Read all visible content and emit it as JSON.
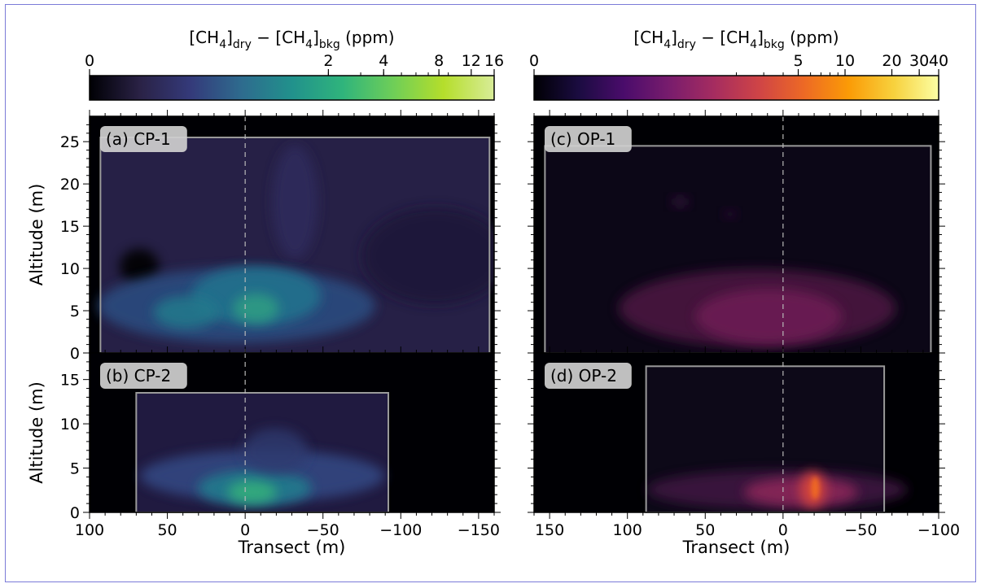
{
  "chart_data": {
    "type": "heatmap",
    "colorbars": [
      {
        "id": "cp",
        "label_prefix": "[CH",
        "label_sub1": "4",
        "label_mid1": "]",
        "label_sub2": "dry",
        "label_minus": " − [CH",
        "label_sub3": "4",
        "label_mid2": "]",
        "label_sub4": "bkg",
        "label_suffix": " (ppm)",
        "scale": "symlog",
        "range": [
          0,
          16
        ],
        "ticks": [
          "0",
          "2",
          "4",
          "8",
          "12",
          "16"
        ],
        "tick_values": [
          0,
          2,
          4,
          8,
          12,
          16
        ],
        "colormap": [
          "#000004",
          "#2a2246",
          "#343a7a",
          "#2e6b8e",
          "#21918c",
          "#2fb47c",
          "#6ece58",
          "#b5de2b",
          "#d8ec98"
        ]
      },
      {
        "id": "op",
        "label_prefix": "[CH",
        "label_sub1": "4",
        "label_mid1": "]",
        "label_sub2": "dry",
        "label_minus": " − [CH",
        "label_sub3": "4",
        "label_mid2": "]",
        "label_sub4": "bkg",
        "label_suffix": " (ppm)",
        "scale": "symlog",
        "range": [
          0,
          40
        ],
        "ticks": [
          "0",
          "5",
          "10",
          "20",
          "30",
          "40"
        ],
        "tick_values": [
          0,
          5,
          10,
          20,
          30,
          40
        ],
        "colormap": [
          "#000004",
          "#1b0c41",
          "#4a0c6b",
          "#781c6d",
          "#a52c60",
          "#cf4446",
          "#ed6925",
          "#fb9b06",
          "#f7d13d",
          "#fcffa4"
        ]
      }
    ],
    "panels": [
      {
        "id": "a",
        "label": "(a) CP-1",
        "xlim": [
          100,
          -160
        ],
        "ylim": [
          0,
          28
        ],
        "yticks": [
          "0",
          "5",
          "10",
          "15",
          "20",
          "25"
        ],
        "ytick_values": [
          0,
          5,
          10,
          15,
          20,
          25
        ],
        "box": {
          "x": [
            93,
            -157
          ],
          "y": [
            0,
            25.5
          ]
        },
        "colormap": "cp"
      },
      {
        "id": "b",
        "label": "(b) CP-2",
        "xlim": [
          100,
          -160
        ],
        "ylim": [
          0,
          18
        ],
        "yticks": [
          "0",
          "5",
          "10",
          "15"
        ],
        "ytick_values": [
          0,
          5,
          10,
          15
        ],
        "box": {
          "x": [
            70,
            -92
          ],
          "y": [
            0,
            13.5
          ]
        },
        "colormap": "cp"
      },
      {
        "id": "c",
        "label": "(c) OP-1",
        "xlim": [
          160,
          -100
        ],
        "ylim": [
          0,
          28
        ],
        "yticks": [
          "0",
          "5",
          "10",
          "15",
          "20",
          "25"
        ],
        "ytick_values": [
          0,
          5,
          10,
          15,
          20,
          25
        ],
        "box": {
          "x": [
            153,
            -95
          ],
          "y": [
            0,
            24.5
          ]
        },
        "colormap": "op"
      },
      {
        "id": "d",
        "label": "(d) OP-2",
        "xlim": [
          160,
          -100
        ],
        "ylim": [
          0,
          18
        ],
        "yticks": [
          "0",
          "5",
          "10",
          "15"
        ],
        "ytick_values": [
          0,
          5,
          10,
          15
        ],
        "box": {
          "x": [
            88,
            -65
          ],
          "y": [
            0,
            16.5
          ]
        },
        "colormap": "op"
      }
    ],
    "xaxis_left": {
      "label": "Transect (m)",
      "ticks": [
        "100",
        "50",
        "0",
        "−50",
        "−100",
        "−150"
      ],
      "tick_values": [
        100,
        50,
        0,
        -50,
        -100,
        -150
      ]
    },
    "xaxis_right": {
      "label": "Transect (m)",
      "ticks": [
        "150",
        "100",
        "50",
        "0",
        "−50",
        "−100"
      ],
      "tick_values": [
        150,
        100,
        50,
        0,
        -50,
        -100
      ]
    },
    "ylabel": "Altitude (m)",
    "reference_line_x": 0
  }
}
